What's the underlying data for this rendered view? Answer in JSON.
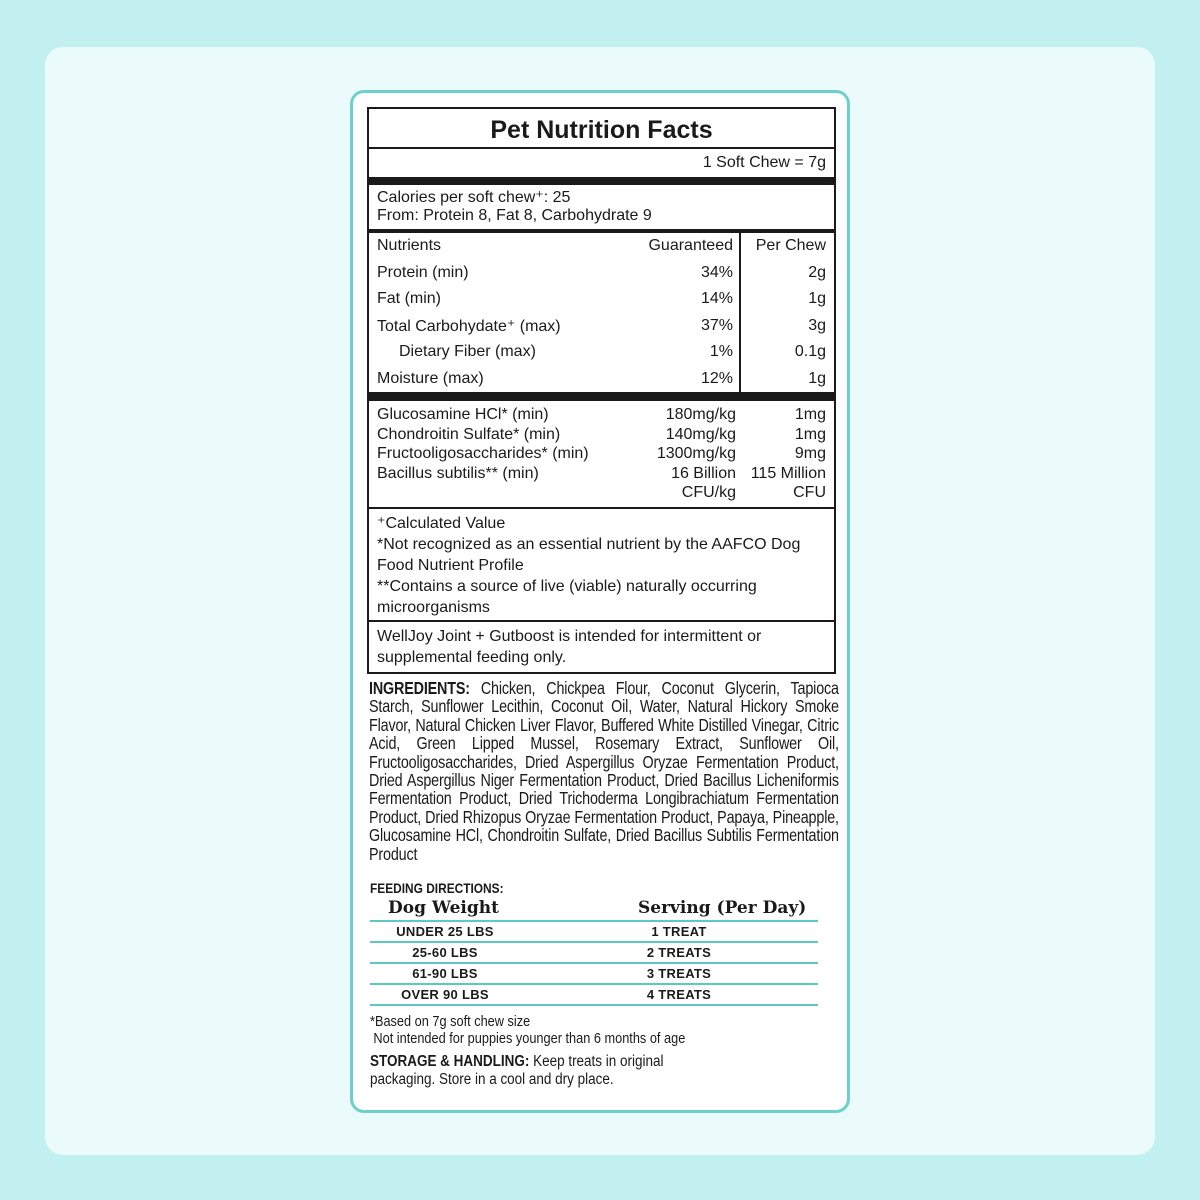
{
  "title": "Pet Nutrition Facts",
  "serving": "1 Soft Chew = 7g",
  "calories": {
    "line1": "Calories per soft chew⁺: 25",
    "line2": "From: Protein 8, Fat 8, Carbohydrate 9"
  },
  "nutrients": {
    "headers": [
      "Nutrients",
      "Guaranteed",
      "Per Chew"
    ],
    "rows": [
      [
        "Protein (min)",
        "34%",
        "2g"
      ],
      [
        "Fat (min)",
        "14%",
        "1g"
      ],
      [
        "Total Carbohydate⁺ (max)",
        "37%",
        "3g"
      ],
      [
        "Dietary Fiber (max)",
        "1%",
        "0.1g"
      ],
      [
        "Moisture (max)",
        "12%",
        "1g"
      ]
    ]
  },
  "supplements": [
    [
      "Glucosamine HCl* (min)",
      "180mg/kg",
      "1mg"
    ],
    [
      "Chondroitin Sulfate* (min)",
      "140mg/kg",
      "1mg"
    ],
    [
      "Fructooligosaccharides* (min)",
      "1300mg/kg",
      "9mg"
    ],
    [
      "Bacillus subtilis** (min)",
      "16 Billion CFU/kg",
      "115 Million CFU"
    ]
  ],
  "footnotes": [
    "⁺Calculated Value",
    "*Not recognized as an essential nutrient by the AAFCO Dog Food Nutrient Profile",
    "**Contains a source of live (viable) naturally occurring microorganisms"
  ],
  "note": "WellJoy Joint + Gutboost is intended for intermittent or supplemental feeding only.",
  "ingredients": {
    "label": "INGREDIENTS:",
    "text": "Chicken, Chickpea Flour, Coconut Glycerin, Tapioca Starch, Sunflower Lecithin, Coconut Oil, Water, Natural Hickory Smoke Flavor, Natural Chicken Liver Flavor, Buffered White Distilled Vinegar, Citric Acid, Green Lipped Mussel, Rosemary Extract, Sunflower Oil, Fructooligosaccharides, Dried Aspergillus Oryzae Fermentation Product, Dried Aspergillus Niger Fermentation Product, Dried Bacillus Licheniformis Fermentation Product, Dried Trichoderma Longibrachiatum Fermentation Product, Dried Rhizopus Oryzae Fermentation Product, Papaya, Pineapple, Glucosamine HCl, Chondroitin Sulfate, Dried Bacillus Subtilis Fermentation Product"
  },
  "feeding": {
    "label": "FEEDING DIRECTIONS:",
    "headers": [
      "Dog Weight",
      "Serving (Per Day)"
    ],
    "rows": [
      [
        "UNDER 25 LBS",
        "1 TREAT"
      ],
      [
        "25-60 LBS",
        "2 TREATS"
      ],
      [
        "61-90 LBS",
        "3 TREATS"
      ],
      [
        "OVER 90 LBS",
        "4 TREATS"
      ]
    ],
    "notes": [
      "*Based on 7g soft chew size",
      "Not intended for puppies younger than 6 months of age"
    ]
  },
  "storage": {
    "label": "STORAGE & HANDLING:",
    "text": "Keep treats in original packaging. Store in a cool and dry place."
  },
  "colors": {
    "background": "#c2efef",
    "panel": "#ebfafa",
    "accent": "#6dd0cb"
  }
}
